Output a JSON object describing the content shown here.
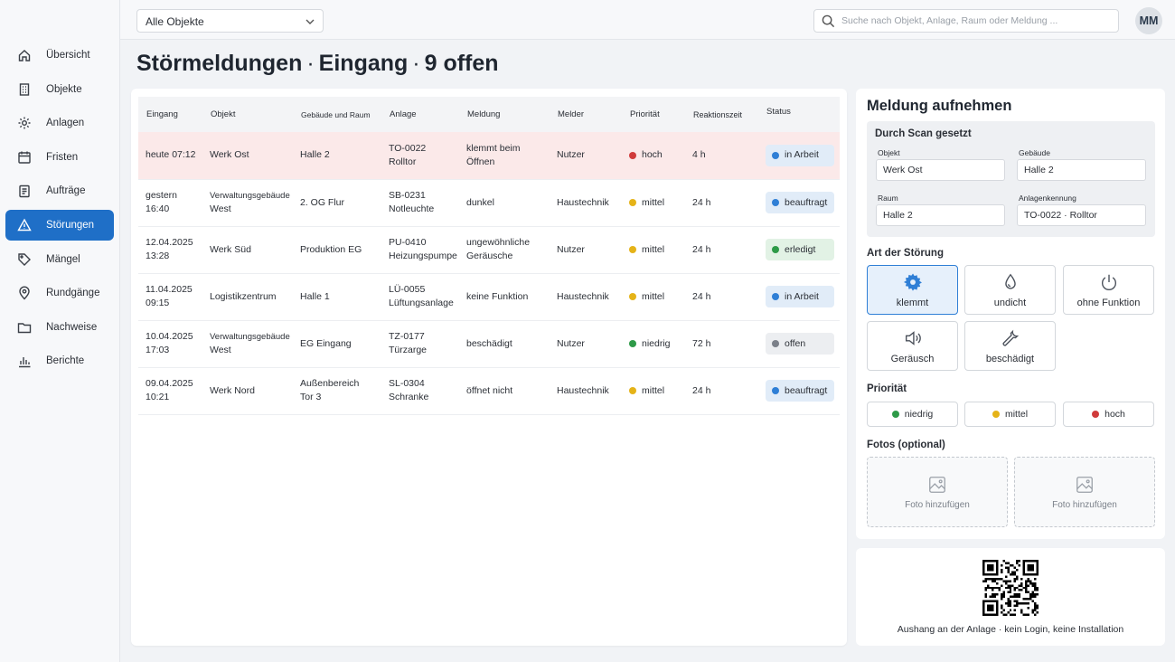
{
  "topbar": {
    "filter_value": "Alle Objekte",
    "search_placeholder": "Suche nach Objekt, Anlage, Raum oder Meldung ...",
    "avatar_initials": "MM"
  },
  "sidebar": {
    "items": [
      {
        "label": "Übersicht",
        "icon": "home-icon"
      },
      {
        "label": "Objekte",
        "icon": "building-icon"
      },
      {
        "label": "Anlagen",
        "icon": "gear-icon"
      },
      {
        "label": "Fristen",
        "icon": "calendar-icon"
      },
      {
        "label": "Aufträge",
        "icon": "clipboard-icon"
      },
      {
        "label": "Störungen",
        "icon": "warning-icon",
        "active": true
      },
      {
        "label": "Mängel",
        "icon": "tag-icon"
      },
      {
        "label": "Rundgänge",
        "icon": "map-pin-icon"
      },
      {
        "label": "Nachweise",
        "icon": "folder-icon"
      },
      {
        "label": "Berichte",
        "icon": "bar-chart-icon"
      }
    ]
  },
  "title": {
    "part1": "Störmeldungen",
    "part2": "Eingang",
    "part3": "9 offen",
    "separator": "·"
  },
  "table": {
    "columns": [
      "Eingang",
      "Objekt",
      "Gebäude und Raum",
      "Anlage",
      "Meldung",
      "Melder",
      "Priorität",
      "Reaktionszeit",
      "Status"
    ],
    "rows": [
      {
        "eingang1": "heute 07:12",
        "eingang2": "",
        "objekt1": "Werk Ost",
        "objekt2": "",
        "raum1": "Halle 2",
        "raum2": "",
        "anlage1": "TO-0022",
        "anlage2": "Rolltor",
        "meldung1": "klemmt beim",
        "meldung2": "Öffnen",
        "melder": "Nutzer",
        "prio": "hoch",
        "prio_color": "#d03b3b",
        "zeit": "4 h",
        "status": "in Arbeit",
        "status_bg": "#e1ecf8",
        "status_dot": "#2f7fd6",
        "highlight": true
      },
      {
        "eingang1": "gestern",
        "eingang2": "16:40",
        "objekt1": "Verwaltungsgebäude",
        "objekt2": "West",
        "raum1": "2. OG Flur",
        "raum2": "",
        "anlage1": "SB-0231",
        "anlage2": "Notleuchte",
        "meldung1": "dunkel",
        "meldung2": "",
        "melder": "Haustechnik",
        "prio": "mittel",
        "prio_color": "#e5b318",
        "zeit": "24 h",
        "status": "beauftragt",
        "status_bg": "#e1ecf8",
        "status_dot": "#2f7fd6",
        "highlight": false
      },
      {
        "eingang1": "12.04.2025",
        "eingang2": "13:28",
        "objekt1": "Werk Süd",
        "objekt2": "",
        "raum1": "Produktion EG",
        "raum2": "",
        "anlage1": "PU-0410",
        "anlage2": "Heizungspumpe",
        "meldung1": "ungewöhnliche",
        "meldung2": "Geräusche",
        "melder": "Nutzer",
        "prio": "mittel",
        "prio_color": "#e5b318",
        "zeit": "24 h",
        "status": "erledigt",
        "status_bg": "#e2f2e5",
        "status_dot": "#2e9a48",
        "highlight": false
      },
      {
        "eingang1": "11.04.2025",
        "eingang2": "09:15",
        "objekt1": "Logistikzentrum",
        "objekt2": "",
        "raum1": "Halle 1",
        "raum2": "",
        "anlage1": "LÜ-0055",
        "anlage2": "Lüftungsanlage",
        "meldung1": "keine Funktion",
        "meldung2": "",
        "melder": "Haustechnik",
        "prio": "mittel",
        "prio_color": "#e5b318",
        "zeit": "24 h",
        "status": "in Arbeit",
        "status_bg": "#e1ecf8",
        "status_dot": "#2f7fd6",
        "highlight": false
      },
      {
        "eingang1": "10.04.2025",
        "eingang2": "17:03",
        "objekt1": "Verwaltungsgebäude",
        "objekt2": "West",
        "raum1": "EG Eingang",
        "raum2": "",
        "anlage1": "TZ-0177",
        "anlage2": "Türzarge",
        "meldung1": "beschädigt",
        "meldung2": "",
        "melder": "Nutzer",
        "prio": "niedrig",
        "prio_color": "#2e9a48",
        "zeit": "72 h",
        "status": "offen",
        "status_bg": "#eceef1",
        "status_dot": "#7b8089",
        "highlight": false
      },
      {
        "eingang1": "09.04.2025",
        "eingang2": "10:21",
        "objekt1": "Werk Nord",
        "objekt2": "",
        "raum1": "Außenbereich",
        "raum2": "Tor 3",
        "anlage1": "SL-0304",
        "anlage2": "Schranke",
        "meldung1": "öffnet nicht",
        "meldung2": "",
        "melder": "Haustechnik",
        "prio": "mittel",
        "prio_color": "#e5b318",
        "zeit": "24 h",
        "status": "beauftragt",
        "status_bg": "#e1ecf8",
        "status_dot": "#2f7fd6",
        "highlight": false
      }
    ]
  },
  "form": {
    "title": "Meldung aufnehmen",
    "scan": {
      "title": "Durch Scan gesetzt",
      "objekt_label": "Objekt",
      "objekt_value": "Werk Ost",
      "gebaeude_label": "Gebäude",
      "gebaeude_value": "Halle 2",
      "raum_label": "Raum",
      "raum_value": "Halle 2",
      "anlage_label": "Anlagenkennung",
      "anlage_value": "TO-0022 · Rolltor"
    },
    "type_label": "Art der Störung",
    "types": [
      {
        "label": "klemmt",
        "icon": "gear-icon",
        "selected": true
      },
      {
        "label": "undicht",
        "icon": "drop-icon",
        "selected": false
      },
      {
        "label": "ohne Funktion",
        "icon": "power-icon",
        "selected": false
      },
      {
        "label": "Geräusch",
        "icon": "speaker-icon",
        "selected": false
      },
      {
        "label": "beschädigt",
        "icon": "wrench-icon",
        "selected": false
      }
    ],
    "prio_label": "Priorität",
    "priorities": [
      {
        "label": "niedrig",
        "color": "#2e9a48"
      },
      {
        "label": "mittel",
        "color": "#e5b318"
      },
      {
        "label": "hoch",
        "color": "#d03b3b"
      }
    ],
    "photos_label": "Fotos (optional)",
    "photo_button": "Foto hinzufügen"
  },
  "qr": {
    "caption": "Aushang an der Anlage · kein Login, keine Installation"
  }
}
